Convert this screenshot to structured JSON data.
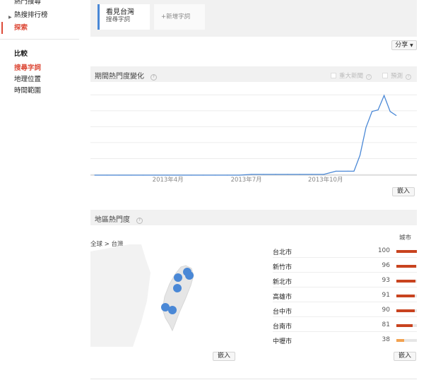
{
  "sidebar": {
    "items": [
      {
        "label": "熱門搜尋"
      },
      {
        "label": "熱搜排行榜"
      },
      {
        "label": "探索"
      }
    ],
    "compare_heading": "比較",
    "compare_items": [
      {
        "label": "搜尋字詞"
      },
      {
        "label": "地理位置"
      },
      {
        "label": "時間範圍"
      }
    ]
  },
  "search": {
    "term": "看見台灣",
    "term_type": "搜尋字詞",
    "add_term": "+新增字詞"
  },
  "share_label": "分享",
  "interest_over_time": {
    "title": "期間熱門度變化",
    "options": [
      {
        "label": "重大新聞"
      },
      {
        "label": "預測"
      }
    ],
    "embed_label": "嵌入",
    "colors": {
      "line": "#4a88d6"
    }
  },
  "chart_data": {
    "type": "line",
    "x_tick_labels": [
      "2013年4月",
      "2013年7月",
      "2013年10月"
    ],
    "x": [
      "2013-01-06",
      "2013-01-20",
      "2013-02-03",
      "2013-02-17",
      "2013-03-03",
      "2013-03-17",
      "2013-03-31",
      "2013-04-14",
      "2013-04-28",
      "2013-05-12",
      "2013-05-26",
      "2013-06-09",
      "2013-06-23",
      "2013-07-07",
      "2013-07-21",
      "2013-08-04",
      "2013-08-18",
      "2013-09-01",
      "2013-09-15",
      "2013-09-29",
      "2013-10-13",
      "2013-10-27",
      "2013-11-03",
      "2013-11-10",
      "2013-11-17",
      "2013-11-24",
      "2013-12-01",
      "2013-12-08",
      "2013-12-15",
      "2013-12-22"
    ],
    "series": [
      {
        "values": [
          0,
          0,
          0,
          0,
          0,
          0,
          0,
          0,
          0,
          0,
          0,
          0,
          0,
          1,
          1,
          1,
          1,
          1,
          1,
          1,
          5,
          5,
          5,
          25,
          60,
          80,
          82,
          100,
          80,
          75
        ]
      }
    ],
    "ylim": [
      0,
      110
    ],
    "grid": true
  },
  "regional": {
    "title": "地區熱門度",
    "breadcrumb": "全球 > 台灣",
    "column_header": "城市",
    "embed_label": "嵌入",
    "map_embed_label": "嵌入",
    "colors": {
      "bar_high": "#c8431f",
      "bar_low": "#f2a250",
      "marker": "#4a88d6",
      "land": "#e6e6e6"
    },
    "cities": [
      {
        "name": "台北市",
        "value": 100
      },
      {
        "name": "新竹市",
        "value": 96
      },
      {
        "name": "新北市",
        "value": 93
      },
      {
        "name": "高雄市",
        "value": 91
      },
      {
        "name": "台中市",
        "value": 90
      },
      {
        "name": "台南市",
        "value": 81
      },
      {
        "name": "中壢市",
        "value": 38
      }
    ]
  }
}
